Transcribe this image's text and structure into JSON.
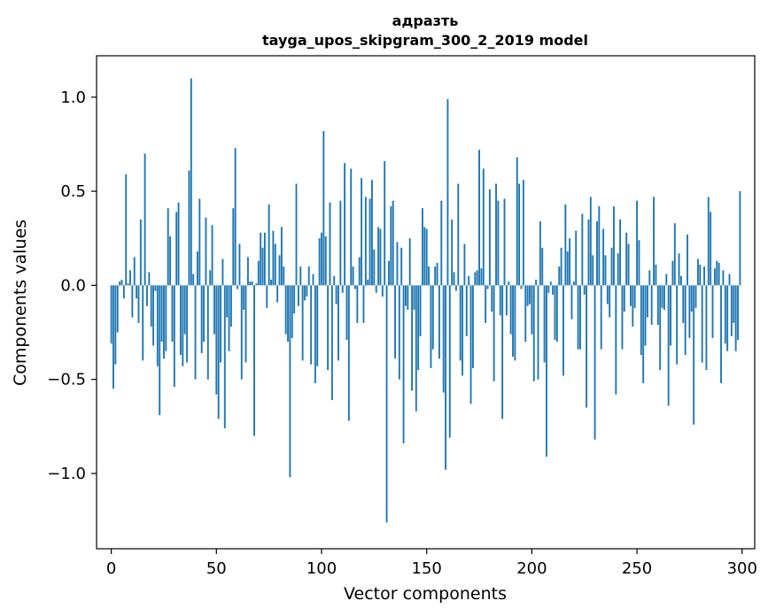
{
  "chart_data": {
    "type": "bar",
    "title": "адразть",
    "subtitle": "tayga_upos_skipgram_300_2_2019 model",
    "xlabel": "Vector components",
    "ylabel": "Components values",
    "xlim": [
      -7,
      306
    ],
    "ylim": [
      -1.4,
      1.22
    ],
    "xticks": [
      0,
      50,
      100,
      150,
      200,
      250,
      300
    ],
    "xtick_labels": [
      "0",
      "50",
      "100",
      "150",
      "200",
      "250",
      "300"
    ],
    "yticks": [
      -1.0,
      -0.5,
      0.0,
      0.5,
      1.0
    ],
    "ytick_labels": [
      "−1.0",
      "−0.5",
      "0.0",
      "0.5",
      "1.0"
    ],
    "bar_color": "#1f77b4",
    "values": [
      -0.31,
      -0.55,
      -0.42,
      -0.25,
      0.02,
      0.03,
      -0.07,
      0.59,
      0.01,
      0.08,
      -0.17,
      0.15,
      -0.07,
      -0.2,
      0.35,
      -0.4,
      0.7,
      -0.11,
      0.07,
      -0.22,
      -0.32,
      -0.03,
      -0.43,
      -0.69,
      -0.3,
      -0.39,
      -0.35,
      0.41,
      0.26,
      -0.3,
      -0.54,
      0.39,
      0.44,
      -0.37,
      -0.43,
      -0.26,
      -0.41,
      0.61,
      1.1,
      0.06,
      -0.5,
      0.18,
      0.46,
      -0.36,
      -0.3,
      0.36,
      -0.5,
      0.08,
      0.32,
      -0.26,
      -0.58,
      -0.71,
      -0.41,
      0.14,
      -0.76,
      -0.17,
      -0.35,
      -0.22,
      0.41,
      0.73,
      -0.02,
      0.22,
      -0.5,
      -0.13,
      -0.41,
      0.15,
      0.02,
      0.02,
      -0.8,
      0.01,
      0.13,
      0.28,
      0.2,
      0.28,
      -0.12,
      0.43,
      0.03,
      0.29,
      0.22,
      -0.09,
      0.16,
      0.31,
      0.1,
      -0.26,
      -0.3,
      -1.02,
      -0.28,
      -0.15,
      0.54,
      -0.11,
      0.1,
      -0.4,
      -0.08,
      -0.06,
      0.1,
      -0.42,
      0.06,
      -0.52,
      -0.43,
      0.25,
      0.28,
      0.82,
      0.26,
      -0.45,
      0.44,
      -0.61,
      0.05,
      -0.1,
      -0.4,
      0.45,
      -0.04,
      0.65,
      -0.29,
      -0.72,
      0.62,
      0.1,
      -0.02,
      -0.2,
      0.15,
      0.57,
      -0.2,
      0.47,
      0.03,
      0.46,
      0.56,
      0.19,
      -0.04,
      0.31,
      0.3,
      -0.06,
      0.66,
      -1.26,
      0.13,
      0.42,
      0.45,
      -0.39,
      0.23,
      -0.5,
      0.2,
      -0.84,
      -0.11,
      -0.13,
      0.25,
      -0.56,
      -0.13,
      -0.67,
      -0.45,
      -0.27,
      0.41,
      0.31,
      0.3,
      0.1,
      -0.44,
      -0.34,
      0.1,
      0.12,
      -0.39,
      0.45,
      -0.57,
      -0.98,
      0.99,
      -0.81,
      0.35,
      0.07,
      -0.03,
      0.54,
      -0.4,
      -0.48,
      0.22,
      -0.27,
      0.05,
      -0.63,
      -0.44,
      0.07,
      0.08,
      0.72,
      0.09,
      0.62,
      -0.2,
      -0.02,
      0.51,
      -0.14,
      -0.51,
      0.54,
      0.45,
      -0.16,
      -0.71,
      0.46,
      -0.16,
      0.02,
      -0.26,
      -0.38,
      -0.4,
      0.68,
      0.54,
      -0.02,
      0.56,
      -0.3,
      -0.11,
      -0.1,
      -0.26,
      -0.51,
      0.03,
      -0.5,
      0.34,
      0.2,
      -0.41,
      -0.91,
      -0.04,
      0.02,
      -0.05,
      -0.29,
      -0.3,
      0.1,
      0.2,
      -0.48,
      0.43,
      0.18,
      0.25,
      -0.18,
      0.02,
      0.29,
      -0.34,
      -0.34,
      0.38,
      -0.05,
      -0.65,
      0.35,
      0.47,
      0.16,
      -0.82,
      0.34,
      0.42,
      -0.34,
      0.3,
      0.16,
      -0.1,
      -0.17,
      0.2,
      0.42,
      -0.58,
      0.17,
      0.35,
      -0.34,
      -0.14,
      0.28,
      0.22,
      -0.11,
      -0.22,
      -0.12,
      0.45,
      0.24,
      -0.37,
      -0.52,
      -0.32,
      -0.17,
      0.08,
      -0.21,
      0.47,
      0.11,
      -0.21,
      -0.45,
      -0.12,
      -0.13,
      0.06,
      -0.64,
      -0.32,
      0.13,
      0.33,
      -0.42,
      0.17,
      0.05,
      -0.2,
      -0.37,
      0.27,
      -0.28,
      -0.14,
      -0.74,
      -0.12,
      0.14,
      0.11,
      -0.41,
      0.1,
      -0.45,
      0.47,
      0.39,
      -0.28,
      0.09,
      0.13,
      0.12,
      -0.52,
      0.08,
      -0.31,
      -0.35,
      0.06,
      -0.27,
      -0.2,
      -0.35,
      -0.29,
      0.5
    ]
  }
}
